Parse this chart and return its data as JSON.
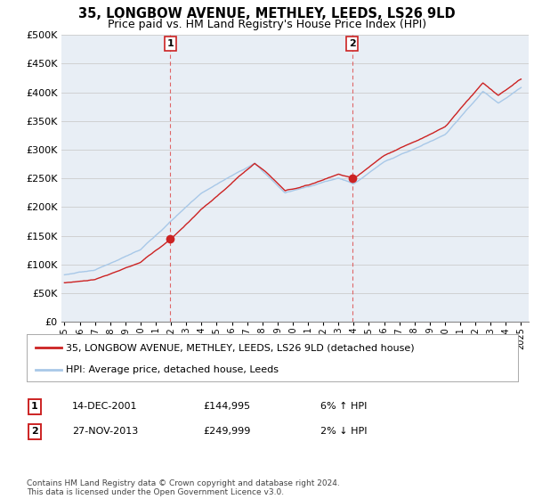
{
  "title": "35, LONGBOW AVENUE, METHLEY, LEEDS, LS26 9LD",
  "subtitle": "Price paid vs. HM Land Registry's House Price Index (HPI)",
  "legend_line1": "35, LONGBOW AVENUE, METHLEY, LEEDS, LS26 9LD (detached house)",
  "legend_line2": "HPI: Average price, detached house, Leeds",
  "annotation1_date": "14-DEC-2001",
  "annotation1_price": "£144,995",
  "annotation1_hpi": "6% ↑ HPI",
  "annotation2_date": "27-NOV-2013",
  "annotation2_price": "£249,999",
  "annotation2_hpi": "2% ↓ HPI",
  "footnote": "Contains HM Land Registry data © Crown copyright and database right 2024.\nThis data is licensed under the Open Government Licence v3.0.",
  "sale1_year": 2001.95,
  "sale1_value": 144995,
  "sale2_year": 2013.9,
  "sale2_value": 249999,
  "ylim": [
    0,
    500000
  ],
  "ytick_vals": [
    0,
    50000,
    100000,
    150000,
    200000,
    250000,
    300000,
    350000,
    400000,
    450000,
    500000
  ],
  "ytick_labels": [
    "£0",
    "£50K",
    "£100K",
    "£150K",
    "£200K",
    "£250K",
    "£300K",
    "£350K",
    "£400K",
    "£450K",
    "£500K"
  ],
  "year_start": 1995,
  "year_end": 2025,
  "hpi_color": "#a8c8e8",
  "price_color": "#cc2222",
  "vline_color": "#dd4444",
  "grid_color": "#cccccc",
  "chart_bg": "#e8eef5",
  "background_color": "#ffffff"
}
